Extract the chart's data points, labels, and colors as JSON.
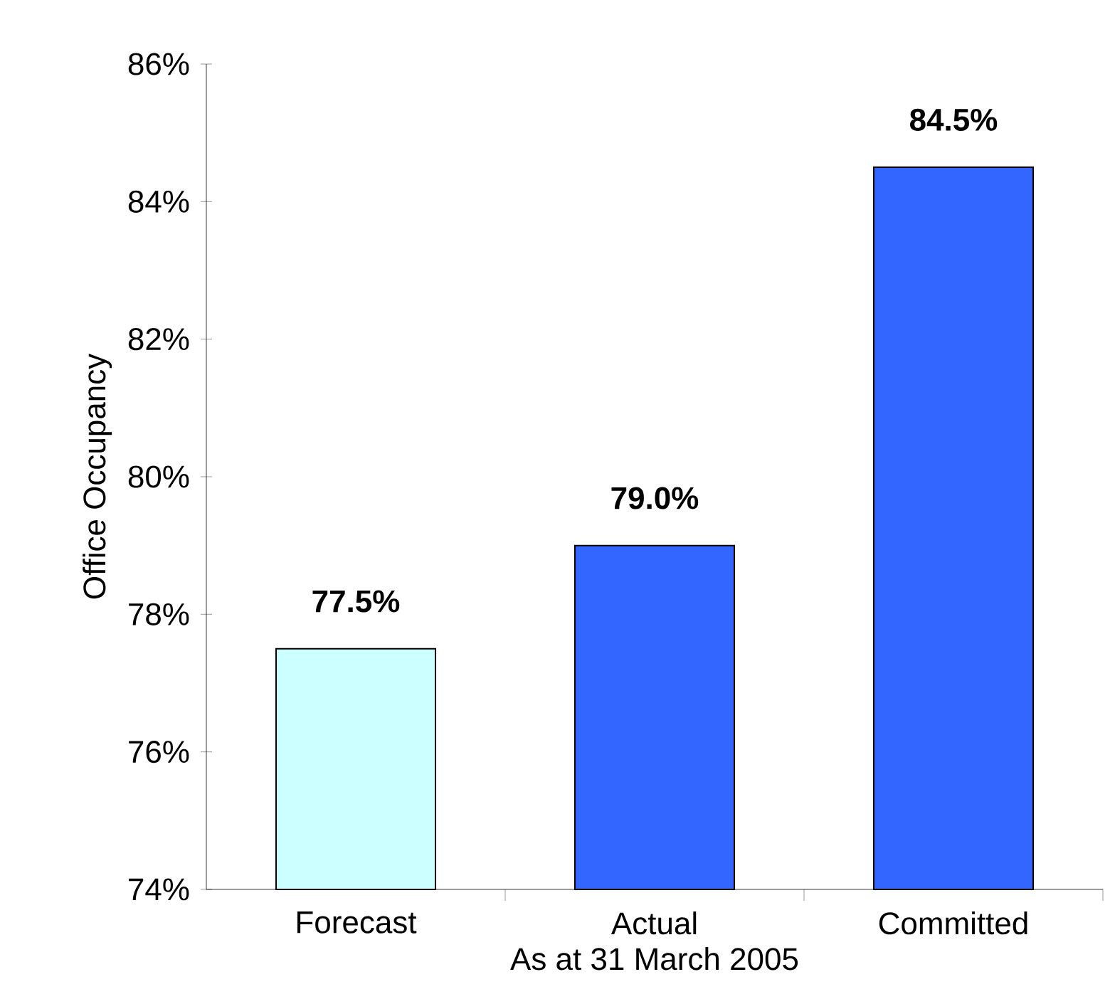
{
  "chart_data": {
    "type": "bar",
    "xlabel": "As at 31 March 2005",
    "ylabel": "Office Occupancy",
    "categories": [
      "Forecast",
      "Actual",
      "Committed"
    ],
    "values": [
      77.5,
      79.0,
      84.5
    ],
    "colors": [
      "#ccffff",
      "#3366ff",
      "#3366ff"
    ],
    "value_labels": [
      "77.5%",
      "79.0%",
      "84.5%"
    ],
    "ylim": [
      74,
      86
    ],
    "yticks": [
      {
        "value": 74,
        "label": "74%"
      },
      {
        "value": 76,
        "label": "76%"
      },
      {
        "value": 78,
        "label": "78%"
      },
      {
        "value": 80,
        "label": "80%"
      },
      {
        "value": 82,
        "label": "82%"
      },
      {
        "value": 84,
        "label": "84%"
      },
      {
        "value": 86,
        "label": "86%"
      }
    ],
    "grid": false
  }
}
